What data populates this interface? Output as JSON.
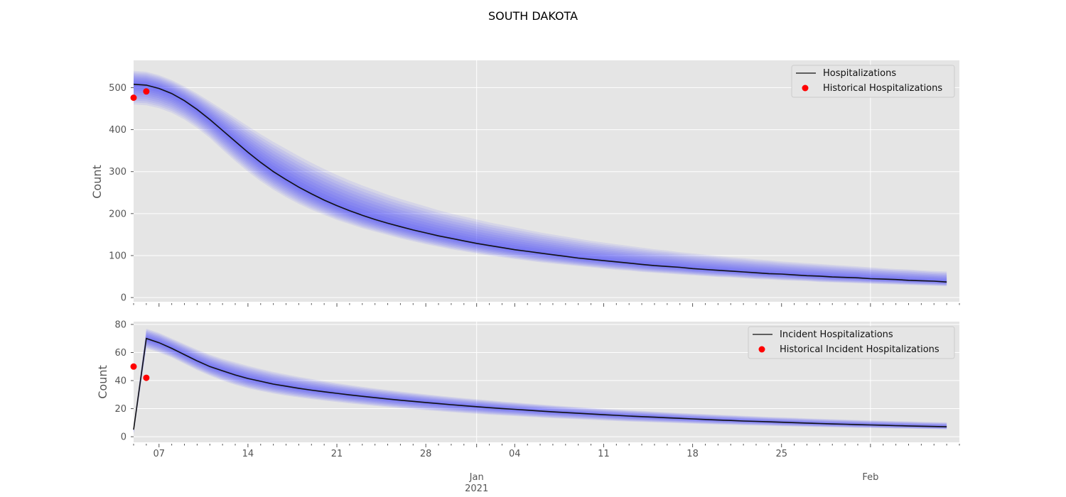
{
  "title": "SOUTH DAKOTA",
  "colors": {
    "panel_bg": "#e5e5e5",
    "grid": "#ffffff",
    "band": "#3333ff",
    "median_line": "#111111",
    "historical_points": "#ff0000"
  },
  "x_axis": {
    "range": [
      "2020-12-05",
      "2021-02-08"
    ],
    "minor_ticks": "daily",
    "major_ticks": [
      {
        "date": "2020-12-07",
        "label": "07",
        "sublabel": ""
      },
      {
        "date": "2020-12-14",
        "label": "14",
        "sublabel": ""
      },
      {
        "date": "2020-12-21",
        "label": "21",
        "sublabel": ""
      },
      {
        "date": "2020-12-28",
        "label": "28",
        "sublabel": ""
      },
      {
        "date": "2021-01-01",
        "label": "Jan",
        "sublabel": "2021"
      },
      {
        "date": "2021-01-04",
        "label": "04",
        "sublabel": ""
      },
      {
        "date": "2021-01-11",
        "label": "11",
        "sublabel": ""
      },
      {
        "date": "2021-01-18",
        "label": "18",
        "sublabel": ""
      },
      {
        "date": "2021-01-25",
        "label": "25",
        "sublabel": ""
      },
      {
        "date": "2021-02-01",
        "label": "Feb",
        "sublabel": ""
      }
    ]
  },
  "chart_data": [
    {
      "type": "line",
      "ylabel": "Count",
      "ylim": [
        -10,
        565
      ],
      "yticks": [
        0,
        100,
        200,
        300,
        400,
        500
      ],
      "grid": true,
      "legend_position": "top-right",
      "x": [
        "2020-12-05",
        "2020-12-06",
        "2020-12-07",
        "2020-12-08",
        "2020-12-09",
        "2020-12-10",
        "2020-12-11",
        "2020-12-12",
        "2020-12-13",
        "2020-12-14",
        "2020-12-15",
        "2020-12-16",
        "2020-12-17",
        "2020-12-18",
        "2020-12-19",
        "2020-12-20",
        "2020-12-21",
        "2020-12-22",
        "2020-12-23",
        "2020-12-24",
        "2020-12-25",
        "2020-12-26",
        "2020-12-27",
        "2020-12-28",
        "2020-12-29",
        "2020-12-30",
        "2020-12-31",
        "2021-01-01",
        "2021-01-02",
        "2021-01-03",
        "2021-01-04",
        "2021-01-05",
        "2021-01-06",
        "2021-01-07",
        "2021-01-08",
        "2021-01-09",
        "2021-01-10",
        "2021-01-11",
        "2021-01-12",
        "2021-01-13",
        "2021-01-14",
        "2021-01-15",
        "2021-01-16",
        "2021-01-17",
        "2021-01-18",
        "2021-01-19",
        "2021-01-20",
        "2021-01-21",
        "2021-01-22",
        "2021-01-23",
        "2021-01-24",
        "2021-01-25",
        "2021-01-26",
        "2021-01-27",
        "2021-01-28",
        "2021-01-29",
        "2021-01-30",
        "2021-01-31",
        "2021-02-01",
        "2021-02-02",
        "2021-02-03",
        "2021-02-04",
        "2021-02-05",
        "2021-02-06",
        "2021-02-07"
      ],
      "series": [
        {
          "name": "Hospitalizations",
          "style": "line",
          "values": [
            508,
            506,
            498,
            486,
            469,
            448,
            424,
            398,
            372,
            346,
            322,
            300,
            281,
            263,
            247,
            232,
            219,
            207,
            196,
            186,
            177,
            169,
            161,
            154,
            147,
            141,
            135,
            129,
            124,
            119,
            114,
            110,
            106,
            102,
            98,
            94,
            91,
            88,
            85,
            82,
            79,
            76,
            74,
            72,
            69,
            67,
            65,
            63,
            61,
            59,
            57,
            56,
            54,
            52,
            51,
            49,
            48,
            47,
            45,
            44,
            43,
            41,
            40,
            39,
            37
          ]
        },
        {
          "name": "Historical Hospitalizations",
          "style": "points",
          "x": [
            "2020-12-05",
            "2020-12-06"
          ],
          "values": [
            476,
            491
          ]
        }
      ],
      "band": {
        "upper": [
          540,
          538,
          530,
          518,
          503,
          486,
          467,
          448,
          428,
          408,
          389,
          371,
          354,
          337,
          321,
          306,
          292,
          279,
          267,
          256,
          245,
          235,
          226,
          217,
          208,
          200,
          193,
          186,
          179,
          173,
          167,
          161,
          155,
          150,
          145,
          140,
          135,
          131,
          127,
          123,
          119,
          115,
          112,
          108,
          105,
          102,
          99,
          96,
          94,
          91,
          89,
          86,
          84,
          82,
          80,
          78,
          76,
          74,
          72,
          70,
          68,
          67,
          65,
          63,
          62
        ],
        "lower": [
          460,
          458,
          451,
          440,
          424,
          404,
          380,
          352,
          325,
          300,
          277,
          257,
          239,
          223,
          209,
          197,
          185,
          175,
          165,
          157,
          149,
          141,
          134,
          127,
          121,
          115,
          110,
          105,
          100,
          96,
          92,
          88,
          84,
          81,
          78,
          75,
          72,
          69,
          66,
          64,
          61,
          59,
          57,
          55,
          53,
          51,
          49,
          48,
          46,
          44,
          43,
          41,
          40,
          39,
          37,
          36,
          35,
          34,
          33,
          32,
          31,
          30,
          29,
          28,
          27
        ]
      }
    },
    {
      "type": "line",
      "ylabel": "Count",
      "ylim": [
        -4,
        82
      ],
      "yticks": [
        0,
        20,
        40,
        60,
        80
      ],
      "grid": true,
      "legend_position": "top-right",
      "x": [
        "2020-12-05",
        "2020-12-06",
        "2020-12-07",
        "2020-12-08",
        "2020-12-09",
        "2020-12-10",
        "2020-12-11",
        "2020-12-12",
        "2020-12-13",
        "2020-12-14",
        "2020-12-15",
        "2020-12-16",
        "2020-12-17",
        "2020-12-18",
        "2020-12-19",
        "2020-12-20",
        "2020-12-21",
        "2020-12-22",
        "2020-12-23",
        "2020-12-24",
        "2020-12-25",
        "2020-12-26",
        "2020-12-27",
        "2020-12-28",
        "2020-12-29",
        "2020-12-30",
        "2020-12-31",
        "2021-01-01",
        "2021-01-02",
        "2021-01-03",
        "2021-01-04",
        "2021-01-05",
        "2021-01-06",
        "2021-01-07",
        "2021-01-08",
        "2021-01-09",
        "2021-01-10",
        "2021-01-11",
        "2021-01-12",
        "2021-01-13",
        "2021-01-14",
        "2021-01-15",
        "2021-01-16",
        "2021-01-17",
        "2021-01-18",
        "2021-01-19",
        "2021-01-20",
        "2021-01-21",
        "2021-01-22",
        "2021-01-23",
        "2021-01-24",
        "2021-01-25",
        "2021-01-26",
        "2021-01-27",
        "2021-01-28",
        "2021-01-29",
        "2021-01-30",
        "2021-01-31",
        "2021-02-01",
        "2021-02-02",
        "2021-02-03",
        "2021-02-04",
        "2021-02-05",
        "2021-02-06",
        "2021-02-07"
      ],
      "series": [
        {
          "name": "Incident Hospitalizations",
          "style": "line",
          "values": [
            5,
            70,
            67,
            63,
            58.5,
            54,
            50,
            47,
            44,
            41.5,
            39.5,
            37.5,
            36,
            34.5,
            33.2,
            32,
            30.9,
            29.8,
            28.8,
            27.8,
            26.9,
            26,
            25.2,
            24.4,
            23.6,
            22.8,
            22.1,
            21.4,
            20.7,
            20.1,
            19.5,
            18.9,
            18.3,
            17.7,
            17.2,
            16.7,
            16.2,
            15.7,
            15.2,
            14.7,
            14.3,
            13.9,
            13.5,
            13.1,
            12.7,
            12.3,
            11.9,
            11.6,
            11.2,
            10.9,
            10.6,
            10.3,
            10,
            9.7,
            9.4,
            9.1,
            8.9,
            8.6,
            8.4,
            8.2,
            7.9,
            7.7,
            7.5,
            7.3,
            7.1
          ]
        },
        {
          "name": "Historical Incident Hospitalizations",
          "style": "points",
          "x": [
            "2020-12-05",
            "2020-12-06"
          ],
          "values": [
            50,
            42
          ]
        }
      ],
      "band": {
        "upper": [
          8,
          77,
          74,
          70,
          66,
          62,
          58.5,
          55.5,
          53,
          50.5,
          48.3,
          46.2,
          44.4,
          42.7,
          41.1,
          39.6,
          38.2,
          36.9,
          35.6,
          34.4,
          33.3,
          32.2,
          31.2,
          30.2,
          29.3,
          28.4,
          27.5,
          26.7,
          25.9,
          25.1,
          24.4,
          23.7,
          23,
          22.3,
          21.7,
          21.1,
          20.5,
          19.9,
          19.4,
          18.9,
          18.4,
          17.9,
          17.4,
          16.9,
          16.5,
          16.1,
          15.7,
          15.3,
          14.9,
          14.5,
          14.1,
          13.8,
          13.5,
          13.1,
          12.8,
          12.5,
          12.2,
          11.9,
          11.6,
          11.4,
          11.1,
          10.9,
          10.6,
          10.4,
          10.2
        ],
        "lower": [
          2,
          63,
          60,
          56.5,
          52,
          47.5,
          43.5,
          40,
          37,
          34.5,
          32.5,
          30.8,
          29.3,
          28,
          26.8,
          25.7,
          24.7,
          23.7,
          22.8,
          21.9,
          21.1,
          20.3,
          19.6,
          18.9,
          18.2,
          17.5,
          16.9,
          16.3,
          15.7,
          15.2,
          14.7,
          14.2,
          13.7,
          13.2,
          12.8,
          12.4,
          12,
          11.6,
          11.2,
          10.8,
          10.5,
          10.2,
          9.9,
          9.6,
          9.3,
          9,
          8.7,
          8.5,
          8.2,
          8,
          7.8,
          7.5,
          7.3,
          7.1,
          6.9,
          6.7,
          6.5,
          6.3,
          6.2,
          6,
          5.8,
          5.7,
          5.5,
          5.4,
          5.2
        ]
      }
    }
  ]
}
